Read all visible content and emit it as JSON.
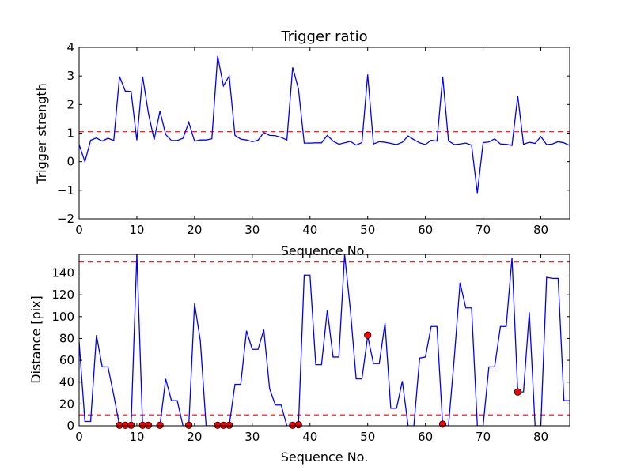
{
  "chart_data": [
    {
      "type": "line",
      "title": "Trigger ratio",
      "xlabel": "Sequence No.",
      "ylabel": "Trigger strength",
      "xlim": [
        0,
        85
      ],
      "ylim": [
        -2,
        4
      ],
      "xticks": [
        0,
        10,
        20,
        30,
        40,
        50,
        60,
        70,
        80
      ],
      "yticks": [
        -2,
        -1,
        0,
        1,
        2,
        3,
        4
      ],
      "grid": false,
      "line_color": "#0000ff",
      "threshold_color": "#ff0000",
      "thresholds": [
        1.05
      ],
      "series": [
        {
          "x": [
            0,
            1,
            2,
            3,
            4,
            5,
            6,
            7,
            8,
            9,
            10,
            11,
            12,
            13,
            14,
            15,
            16,
            17,
            18,
            19,
            20,
            21,
            22,
            23,
            24,
            25,
            26,
            27,
            28,
            29,
            30,
            31,
            32,
            33,
            34,
            35,
            36,
            37,
            38,
            39,
            40,
            41,
            42,
            43,
            44,
            45,
            46,
            47,
            48,
            49,
            50,
            51,
            52,
            53,
            54,
            55,
            56,
            57,
            58,
            59,
            60,
            61,
            62,
            63,
            64,
            65,
            66,
            67,
            68,
            69,
            70,
            71,
            72,
            73,
            74,
            75,
            76,
            77,
            78,
            79,
            80,
            81,
            82,
            83,
            84,
            85
          ],
          "y": [
            0.6,
            0.0,
            0.75,
            0.83,
            0.72,
            0.82,
            0.74,
            2.98,
            2.47,
            2.46,
            0.75,
            2.98,
            1.7,
            0.77,
            1.77,
            0.95,
            0.74,
            0.74,
            0.82,
            1.38,
            0.72,
            0.76,
            0.76,
            0.8,
            3.7,
            2.65,
            3.0,
            0.92,
            0.79,
            0.76,
            0.7,
            0.75,
            1.02,
            0.92,
            0.91,
            0.85,
            0.76,
            3.3,
            2.55,
            0.65,
            0.65,
            0.66,
            0.66,
            0.92,
            0.72,
            0.61,
            0.66,
            0.71,
            0.58,
            0.67,
            3.05,
            0.62,
            0.7,
            0.68,
            0.64,
            0.6,
            0.68,
            0.9,
            0.77,
            0.66,
            0.6,
            0.75,
            0.72,
            2.98,
            0.73,
            0.6,
            0.62,
            0.65,
            0.58,
            -1.1,
            0.67,
            0.69,
            0.8,
            0.62,
            0.61,
            0.57,
            2.3,
            0.61,
            0.68,
            0.64,
            0.88,
            0.6,
            0.62,
            0.7,
            0.66,
            0.57
          ]
        }
      ]
    },
    {
      "type": "line",
      "title": "",
      "xlabel": "Sequence No.",
      "ylabel": "Distance [pix]",
      "xlim": [
        0,
        85
      ],
      "ylim": [
        0,
        157
      ],
      "xticks": [
        0,
        10,
        20,
        30,
        40,
        50,
        60,
        70,
        80
      ],
      "yticks": [
        0,
        20,
        40,
        60,
        80,
        100,
        120,
        140
      ],
      "grid": false,
      "line_color": "#0000ff",
      "threshold_color": "#ff0000",
      "marker_color": "#ff0000",
      "thresholds": [
        150,
        10
      ],
      "series": [
        {
          "x": [
            0,
            1,
            2,
            3,
            4,
            5,
            6,
            7,
            8,
            9,
            10,
            11,
            12,
            13,
            14,
            15,
            16,
            17,
            18,
            19,
            20,
            21,
            22,
            23,
            24,
            25,
            26,
            27,
            28,
            29,
            30,
            31,
            32,
            33,
            34,
            35,
            36,
            37,
            38,
            39,
            40,
            41,
            42,
            43,
            44,
            45,
            46,
            47,
            48,
            49,
            50,
            51,
            52,
            53,
            54,
            55,
            56,
            57,
            58,
            59,
            60,
            61,
            62,
            63,
            64,
            65,
            66,
            67,
            68,
            69,
            70,
            71,
            72,
            73,
            74,
            75,
            76,
            77,
            78,
            79,
            80,
            81,
            82,
            83,
            84,
            85
          ],
          "y": [
            77,
            4,
            4,
            83,
            54,
            54,
            28,
            0,
            0,
            0,
            157,
            0,
            0,
            0,
            0,
            43,
            23,
            23,
            0,
            0,
            112,
            78,
            0,
            0,
            0,
            0,
            0,
            38,
            38,
            87,
            70,
            70,
            88,
            34,
            19,
            19,
            0,
            0,
            0,
            138,
            138,
            56,
            56,
            106,
            63,
            63,
            157,
            106,
            43,
            43,
            82,
            57,
            57,
            94,
            16,
            16,
            41,
            0,
            0,
            62,
            63,
            91,
            91,
            0,
            0,
            62,
            131,
            108,
            108,
            0,
            0,
            54,
            54,
            91,
            91,
            154,
            31,
            31,
            104,
            0,
            0,
            136,
            135,
            135,
            23,
            23
          ]
        },
        {
          "name": "",
          "type": "scatter",
          "x": [
            7,
            8,
            9,
            11,
            12,
            14,
            19,
            24,
            25,
            26,
            37,
            38,
            50,
            63,
            76
          ],
          "y": [
            0.5,
            0.5,
            0.5,
            0.5,
            0.5,
            0.5,
            0.5,
            0.5,
            0.5,
            0.5,
            0.5,
            1,
            83,
            1.5,
            31
          ]
        }
      ]
    }
  ]
}
